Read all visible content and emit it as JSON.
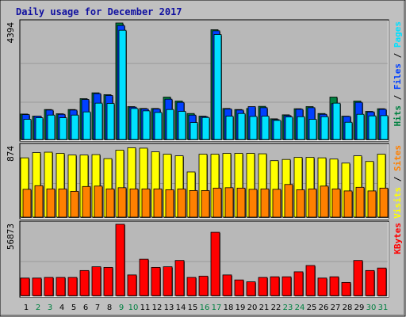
{
  "colors": {
    "frame": "#c0c0c0",
    "panel": "#b8b8b8",
    "grid": "#9a9a9a",
    "title": "#1010a0",
    "hits": "#008040",
    "files": "#0040ff",
    "pages": "#00e0ff",
    "visits": "#ffff00",
    "sites": "#ff8000",
    "kbytes": "#ff0000",
    "weekend_label": "#008040",
    "weekday_label": "#000000"
  },
  "chart_data": {
    "type": "bar",
    "title": "Daily usage for December 2017",
    "categories": [
      "1",
      "2",
      "3",
      "4",
      "5",
      "6",
      "7",
      "8",
      "9",
      "10",
      "11",
      "12",
      "13",
      "14",
      "15",
      "16",
      "17",
      "18",
      "19",
      "20",
      "21",
      "22",
      "23",
      "24",
      "25",
      "26",
      "27",
      "28",
      "29",
      "30",
      "31"
    ],
    "weekend_days": [
      "2",
      "3",
      "9",
      "10",
      "16",
      "17",
      "23",
      "24",
      "30",
      "31"
    ],
    "panels": [
      {
        "name": "hits-files-pages",
        "max_label": "4394",
        "ymax": 4394,
        "legend": [
          {
            "text": "Hits",
            "color": "#008040"
          },
          {
            "text": " / ",
            "color": "#000000"
          },
          {
            "text": "Files",
            "color": "#0040ff"
          },
          {
            "text": " / ",
            "color": "#000000"
          },
          {
            "text": "Pages",
            "color": "#00e0ff"
          }
        ],
        "series": [
          {
            "name": "Hits",
            "values": [
              960,
              880,
              1130,
              970,
              1130,
              1540,
              1760,
              1690,
              4394,
              1240,
              1170,
              1170,
              1600,
              1450,
              980,
              880,
              4140,
              1170,
              1130,
              1170,
              1250,
              780,
              930,
              1160,
              1240,
              980,
              1600,
              880,
              1450,
              1060,
              1160
            ]
          },
          {
            "name": "Files",
            "values": [
              940,
              880,
              1110,
              950,
              1110,
              1510,
              1730,
              1660,
              4300,
              1220,
              1150,
              1150,
              1520,
              1400,
              920,
              860,
              4100,
              1150,
              1110,
              1240,
              1200,
              750,
              900,
              1140,
              1200,
              950,
              1350,
              870,
              1400,
              1040,
              1140
            ]
          },
          {
            "name": "Pages",
            "values": [
              760,
              820,
              920,
              820,
              920,
              1040,
              1370,
              1360,
              4120,
              1170,
              1080,
              1020,
              1130,
              1060,
              640,
              830,
              3960,
              880,
              980,
              870,
              880,
              720,
              850,
              860,
              760,
              860,
              1370,
              650,
              950,
              890,
              900
            ]
          }
        ]
      },
      {
        "name": "visits-sites",
        "max_label": "874",
        "ymax": 874,
        "legend": [
          {
            "text": "Visits",
            "color": "#ffff00"
          },
          {
            "text": " / ",
            "color": "#000000"
          },
          {
            "text": "Sites",
            "color": "#ff8000"
          }
        ],
        "series": [
          {
            "name": "Visits",
            "values": [
              735,
              800,
              805,
              790,
              770,
              770,
              775,
              725,
              830,
              860,
              855,
              810,
              780,
              760,
              560,
              780,
              780,
              790,
              790,
              790,
              785,
              700,
              715,
              740,
              740,
              735,
              720,
              670,
              760,
              690,
              780
            ]
          },
          {
            "name": "Sites",
            "values": [
              345,
              390,
              350,
              350,
              320,
              380,
              385,
              350,
              365,
              350,
              350,
              350,
              340,
              350,
              330,
              330,
              360,
              365,
              360,
              345,
              350,
              345,
              405,
              340,
              350,
              385,
              350,
              325,
              370,
              325,
              360
            ]
          }
        ]
      },
      {
        "name": "kbytes",
        "max_label": "56873",
        "ymax": 56873,
        "legend": [
          {
            "text": "KBytes",
            "color": "#ff0000"
          }
        ],
        "series": [
          {
            "name": "KBytes",
            "values": [
              14000,
              14000,
              14500,
              14500,
              14500,
              20000,
              23000,
              22500,
              56873,
              16500,
              29000,
              22500,
              23000,
              28000,
              14500,
              15500,
              50500,
              16500,
              12500,
              11000,
              14500,
              15000,
              15000,
              19000,
              24000,
              14000,
              15000,
              10500,
              28000,
              20000,
              22000
            ]
          }
        ]
      }
    ]
  }
}
